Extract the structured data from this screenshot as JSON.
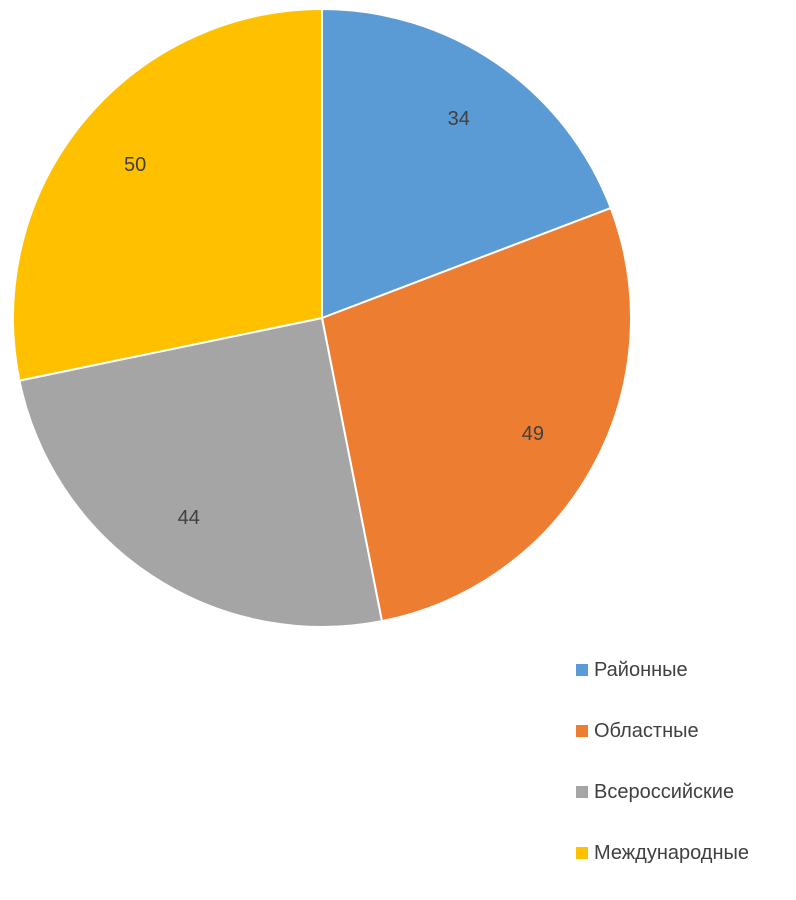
{
  "chart_data": {
    "type": "pie",
    "title": "",
    "categories": [
      "Районные",
      "Областные",
      "Всероссийские",
      "Международные"
    ],
    "values": [
      34,
      49,
      44,
      50
    ],
    "colors": [
      "#5B9BD5",
      "#ED7D31",
      "#A5A5A5",
      "#FFC000"
    ],
    "data_labels": [
      "34",
      "49",
      "44",
      "50"
    ],
    "legend_position": "bottom-right",
    "start_angle": "top",
    "direction": "clockwise"
  }
}
